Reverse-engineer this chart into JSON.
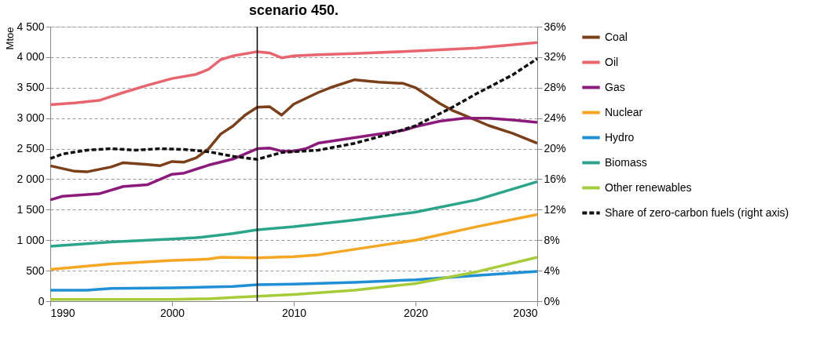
{
  "chart_data": {
    "type": "line",
    "title": "scenario 450.",
    "ylabel": "Mtoe",
    "xlim": [
      1990,
      2030
    ],
    "xticks": [
      1990,
      2000,
      2010,
      2020,
      2030
    ],
    "ylim": [
      0,
      4500
    ],
    "yticks": [
      0,
      500,
      {
        "value": 1000,
        "label": "1 000"
      },
      {
        "value": 1500,
        "label": "1 500"
      },
      {
        "value": 2000,
        "label": "2 000"
      },
      {
        "value": 2500,
        "label": "2 500"
      },
      {
        "value": 3000,
        "label": "3 000"
      },
      {
        "value": 3500,
        "label": "3 500"
      },
      {
        "value": 4000,
        "label": "4 000"
      },
      {
        "value": 4500,
        "label": "4 500"
      }
    ],
    "y2lim": [
      0,
      36
    ],
    "y2ticks": [
      {
        "value": 0,
        "label": "0%"
      },
      {
        "value": 4,
        "label": "4%"
      },
      {
        "value": 8,
        "label": "8%"
      },
      {
        "value": 12,
        "label": "12%"
      },
      {
        "value": 16,
        "label": "16%"
      },
      {
        "value": 20,
        "label": "20%"
      },
      {
        "value": 24,
        "label": "24%"
      },
      {
        "value": 28,
        "label": "28%"
      },
      {
        "value": 32,
        "label": "32%"
      },
      {
        "value": 36,
        "label": "36%"
      }
    ],
    "grid": "y",
    "legend": "right",
    "marker": "none",
    "ref_lines": [
      {
        "axis": "x",
        "value": 2007,
        "color": "#000000",
        "line_style": "solid"
      }
    ],
    "series": [
      {
        "name": "Coal",
        "color": "#7b3f1a",
        "x": [
          1990,
          1992,
          1993,
          1995,
          1996,
          1998,
          1999,
          2000,
          2001,
          2002,
          2003,
          2004,
          2005,
          2006,
          2007,
          2008,
          2009,
          2010,
          2012,
          2013,
          2015,
          2017,
          2019,
          2020,
          2022,
          2023,
          2024,
          2026,
          2028,
          2030
        ],
        "values": [
          2220,
          2130,
          2120,
          2200,
          2270,
          2240,
          2220,
          2290,
          2280,
          2350,
          2500,
          2740,
          2870,
          3050,
          3180,
          3190,
          3050,
          3230,
          3420,
          3500,
          3630,
          3590,
          3570,
          3500,
          3240,
          3130,
          3050,
          2880,
          2750,
          2590
        ]
      },
      {
        "name": "Oil",
        "color": "#e8646f",
        "x": [
          1990,
          1992,
          1994,
          1996,
          1998,
          2000,
          2002,
          2003,
          2004,
          2005,
          2007,
          2008,
          2009,
          2010,
          2012,
          2015,
          2020,
          2025,
          2030
        ],
        "values": [
          3220,
          3250,
          3290,
          3420,
          3540,
          3650,
          3720,
          3800,
          3960,
          4020,
          4090,
          4070,
          3990,
          4020,
          4040,
          4060,
          4100,
          4150,
          4240
        ]
      },
      {
        "name": "Gas",
        "color": "#8b1a7a",
        "x": [
          1990,
          1991,
          1994,
          1996,
          1998,
          2000,
          2001,
          2003,
          2005,
          2007,
          2008,
          2009,
          2010,
          2011,
          2012,
          2015,
          2019,
          2020,
          2022,
          2024,
          2026,
          2028,
          2030
        ],
        "values": [
          1660,
          1720,
          1760,
          1880,
          1910,
          2080,
          2100,
          2230,
          2330,
          2500,
          2510,
          2460,
          2460,
          2500,
          2590,
          2680,
          2800,
          2860,
          2950,
          3000,
          3000,
          2970,
          2930
        ]
      },
      {
        "name": "Nuclear",
        "color": "#f5a623",
        "x": [
          1990,
          1995,
          2000,
          2003,
          2004,
          2007,
          2010,
          2012,
          2015,
          2020,
          2025,
          2030
        ],
        "values": [
          520,
          610,
          670,
          690,
          720,
          710,
          730,
          760,
          850,
          1000,
          1220,
          1420
        ]
      },
      {
        "name": "Hydro",
        "color": "#1f8fd6",
        "x": [
          1990,
          1993,
          1995,
          2000,
          2005,
          2007,
          2010,
          2015,
          2020,
          2025,
          2030
        ],
        "values": [
          180,
          180,
          210,
          220,
          240,
          270,
          280,
          310,
          350,
          420,
          490
        ]
      },
      {
        "name": "Biomass",
        "color": "#2aa58a",
        "x": [
          1990,
          1995,
          2000,
          2002,
          2005,
          2007,
          2010,
          2015,
          2020,
          2025,
          2030
        ],
        "values": [
          900,
          970,
          1020,
          1040,
          1110,
          1170,
          1220,
          1330,
          1460,
          1660,
          1960
        ]
      },
      {
        "name": "Other renewables",
        "color": "#a6cc3a",
        "x": [
          1990,
          2000,
          2003,
          2005,
          2007,
          2010,
          2015,
          2020,
          2025,
          2030
        ],
        "values": [
          30,
          30,
          40,
          60,
          80,
          110,
          180,
          290,
          480,
          720
        ]
      },
      {
        "name": "Share of zero-carbon fuels (right axis)",
        "color": "#111111",
        "axis": "y2",
        "line_style": "dashed",
        "x": [
          1990,
          1991,
          1993,
          1995,
          1997,
          1999,
          2001,
          2003,
          2005,
          2007,
          2009,
          2012,
          2015,
          2018,
          2020,
          2023,
          2025,
          2028,
          2030
        ],
        "values": [
          18.7,
          19.3,
          19.8,
          20.0,
          19.8,
          20.0,
          19.9,
          19.6,
          19.0,
          18.6,
          19.5,
          19.8,
          20.7,
          22.0,
          23.0,
          25.4,
          27.2,
          29.7,
          31.8
        ]
      }
    ]
  }
}
